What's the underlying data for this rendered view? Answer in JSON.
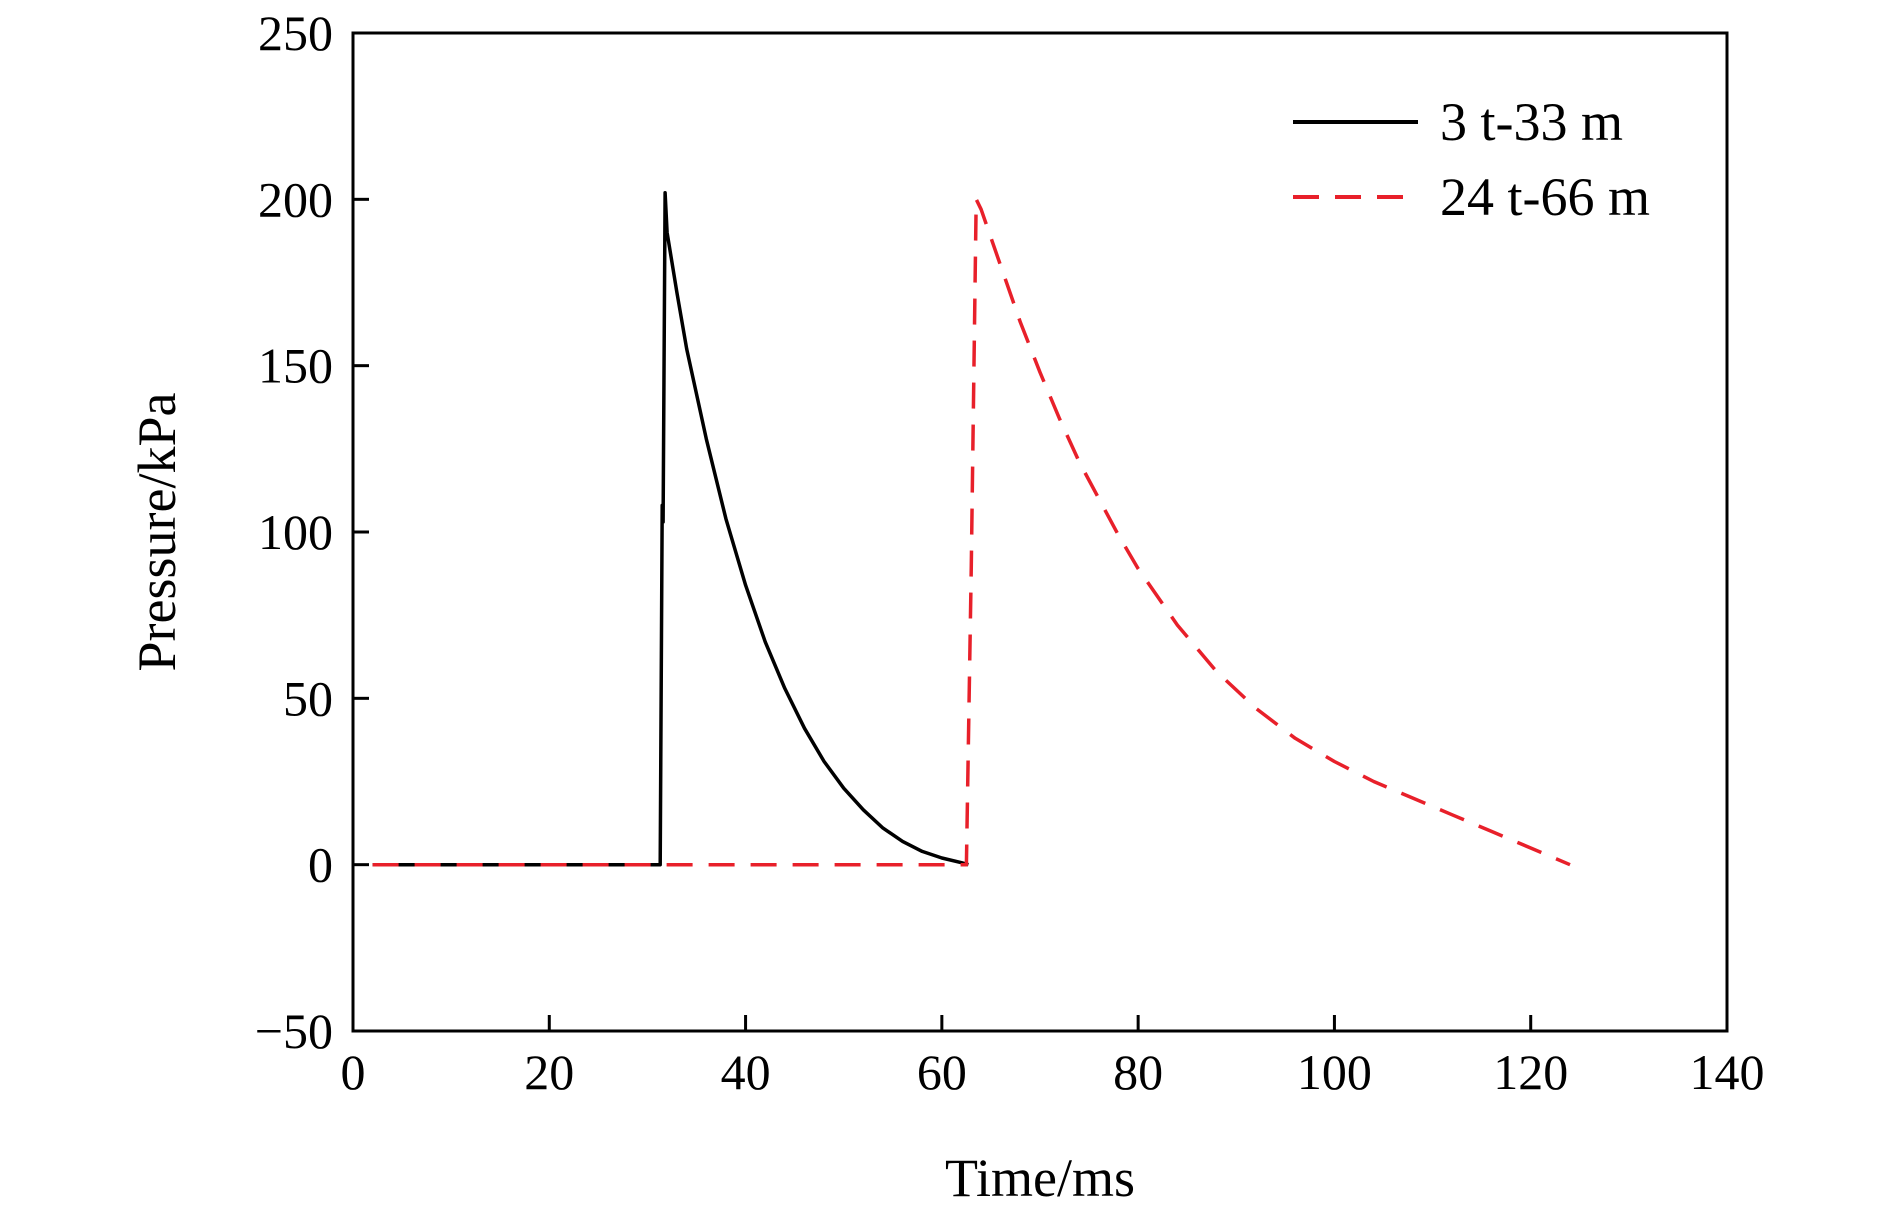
{
  "chart_data": {
    "type": "line",
    "xlabel": "Time/ms",
    "ylabel": "Pressure/kPa",
    "xlim": [
      0,
      140
    ],
    "ylim": [
      -50,
      250
    ],
    "xticks": [
      0,
      20,
      40,
      60,
      80,
      100,
      120,
      140
    ],
    "yticks": [
      -50,
      0,
      50,
      100,
      150,
      200,
      250
    ],
    "ytick_labels": [
      "−50",
      "0",
      "50",
      "100",
      "150",
      "200",
      "250"
    ],
    "grid": false,
    "legend_position": "top-right",
    "series": [
      {
        "name": "3 t-33 m",
        "color": "#000000",
        "dash": "solid",
        "x": [
          2,
          10,
          20,
          31.3,
          31.5,
          31.6,
          31.8,
          32,
          33,
          34,
          36,
          38,
          40,
          42,
          44,
          46,
          48,
          50,
          52,
          54,
          56,
          58,
          60,
          62,
          62.7
        ],
        "y": [
          0,
          0,
          0,
          0,
          108,
          103,
          202,
          190,
          172,
          155,
          128,
          104,
          84,
          67,
          53,
          41,
          31,
          23,
          16.5,
          11,
          7,
          4,
          2,
          0.6,
          0
        ]
      },
      {
        "name": "24 t-66 m",
        "color": "#e8202a",
        "dash": "dashed",
        "x": [
          2,
          10,
          20,
          30,
          40,
          50,
          60,
          62.5,
          63,
          63.5,
          64,
          66,
          68,
          70,
          72,
          74,
          76,
          78,
          80,
          84,
          88,
          92,
          96,
          100,
          104,
          108,
          112,
          116,
          120,
          124
        ],
        "y": [
          0,
          0,
          0,
          0,
          0,
          0,
          0,
          0,
          90,
          200,
          197,
          180,
          163,
          148,
          134,
          121,
          110,
          99,
          89,
          72,
          58,
          47,
          38,
          31,
          25,
          20,
          15,
          10,
          5,
          0
        ]
      }
    ]
  }
}
